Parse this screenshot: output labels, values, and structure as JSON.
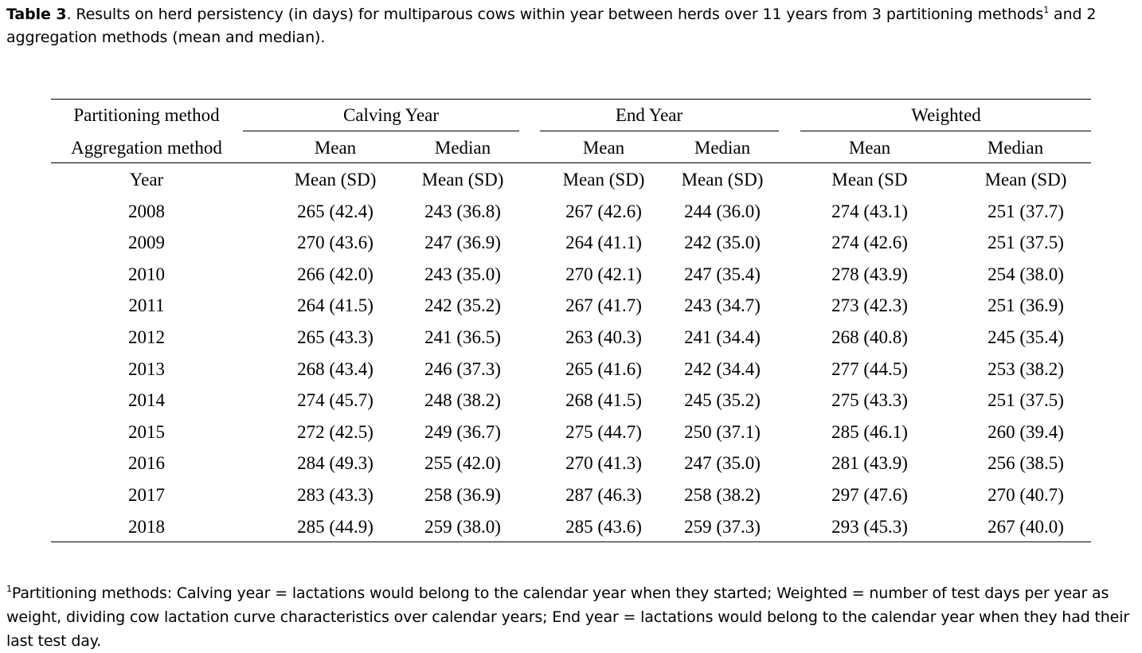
{
  "caption": {
    "label": "Table 3",
    "text": ". Results on herd persistency (in days) for multiparous cows within year between herds over 11 years from 3 partitioning methods",
    "sup": "1",
    "text_after": " and 2 aggregation methods (mean and median)."
  },
  "table": {
    "partitioning_label": "Partitioning method",
    "aggregation_label": "Aggregation method",
    "year_label": "Year",
    "groups": [
      "Calving Year",
      "End Year",
      "Weighted"
    ],
    "aggregations": [
      "Mean",
      "Median",
      "Mean",
      "Median",
      "Mean",
      "Median"
    ],
    "stat_headers": [
      "Mean (SD)",
      "Mean (SD)",
      "Mean (SD)",
      "Mean (SD)",
      "Mean (SD",
      "Mean (SD)"
    ],
    "rows": [
      [
        "2008",
        "265 (42.4)",
        "243 (36.8)",
        "267 (42.6)",
        "244 (36.0)",
        "274 (43.1)",
        "251 (37.7)"
      ],
      [
        "2009",
        "270 (43.6)",
        "247 (36.9)",
        "264 (41.1)",
        "242 (35.0)",
        "274 (42.6)",
        "251 (37.5)"
      ],
      [
        "2010",
        "266 (42.0)",
        "243 (35.0)",
        "270 (42.1)",
        "247 (35.4)",
        "278 (43.9)",
        "254 (38.0)"
      ],
      [
        "2011",
        "264 (41.5)",
        "242 (35.2)",
        "267 (41.7)",
        "243 (34.7)",
        "273 (42.3)",
        "251 (36.9)"
      ],
      [
        "2012",
        "265 (43.3)",
        "241 (36.5)",
        "263 (40.3)",
        "241 (34.4)",
        "268 (40.8)",
        "245 (35.4)"
      ],
      [
        "2013",
        "268 (43.4)",
        "246 (37.3)",
        "265 (41.6)",
        "242 (34.4)",
        "277 (44.5)",
        "253 (38.2)"
      ],
      [
        "2014",
        "274 (45.7)",
        "248 (38.2)",
        "268 (41.5)",
        "245 (35.2)",
        "275 (43.3)",
        "251 (37.5)"
      ],
      [
        "2015",
        "272 (42.5)",
        "249 (36.7)",
        "275 (44.7)",
        "250 (37.1)",
        "285 (46.1)",
        "260 (39.4)"
      ],
      [
        "2016",
        "284 (49.3)",
        "255 (42.0)",
        "270 (41.3)",
        "247 (35.0)",
        "281 (43.9)",
        "256 (38.5)"
      ],
      [
        "2017",
        "283 (43.3)",
        "258 (36.9)",
        "287 (46.3)",
        "258 (38.2)",
        "297 (47.6)",
        "270 (40.7)"
      ],
      [
        "2018",
        "285 (44.9)",
        "259 (38.0)",
        "285 (43.6)",
        "259 (37.3)",
        "293 (45.3)",
        "267 (40.0)"
      ]
    ]
  },
  "footnote": {
    "sup": "1",
    "text": "Partitioning methods: Calving year = lactations would belong to the calendar year when they started; Weighted = number of test days per year as weight, dividing cow lactation curve characteristics over calendar years; End year = lactations would belong to the calendar year when they had their last test day."
  }
}
